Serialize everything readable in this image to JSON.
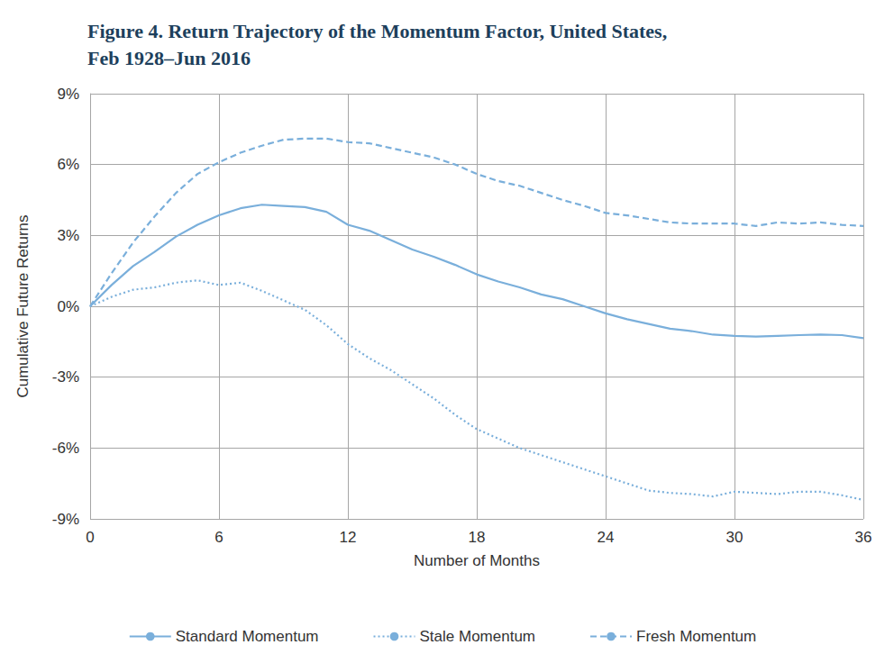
{
  "chart_data": {
    "type": "line",
    "title": "Figure 4. Return Trajectory of the Momentum Factor, United States,\nFeb 1928–Jun 2016",
    "x_label": "Number of Months",
    "y_label": "Cumulative Future Returns",
    "x": [
      0,
      1,
      2,
      3,
      4,
      5,
      6,
      7,
      8,
      9,
      10,
      11,
      12,
      13,
      14,
      15,
      16,
      17,
      18,
      19,
      20,
      21,
      22,
      23,
      24,
      25,
      26,
      27,
      28,
      29,
      30,
      31,
      32,
      33,
      34,
      35,
      36
    ],
    "xlim": [
      0,
      36
    ],
    "xticks": [
      0,
      6,
      12,
      18,
      24,
      30,
      36
    ],
    "ylim": [
      -9,
      9
    ],
    "yticks": [
      {
        "value": -9,
        "label": "-9%"
      },
      {
        "value": -6,
        "label": "-6%"
      },
      {
        "value": -3,
        "label": "-3%"
      },
      {
        "value": 0,
        "label": "0%"
      },
      {
        "value": 3,
        "label": "3%"
      },
      {
        "value": 6,
        "label": "6%"
      },
      {
        "value": 9,
        "label": "9%"
      }
    ],
    "grid": true,
    "legend": "bottom",
    "series": [
      {
        "name": "Standard Momentum",
        "color": "#7aafdb",
        "line_style": "solid",
        "values": [
          0,
          0.9,
          1.7,
          2.3,
          2.95,
          3.45,
          3.85,
          4.15,
          4.3,
          4.25,
          4.2,
          4.0,
          3.45,
          3.2,
          2.8,
          2.4,
          2.1,
          1.75,
          1.35,
          1.05,
          0.8,
          0.5,
          0.3,
          0.0,
          -0.3,
          -0.55,
          -0.75,
          -0.95,
          -1.05,
          -1.2,
          -1.25,
          -1.28,
          -1.25,
          -1.22,
          -1.2,
          -1.22,
          -1.35
        ]
      },
      {
        "name": "Stale Momentum",
        "color": "#7aafdb",
        "line_style": "dotted",
        "values": [
          0,
          0.4,
          0.7,
          0.8,
          1.0,
          1.1,
          0.9,
          1.0,
          0.65,
          0.25,
          -0.15,
          -0.8,
          -1.6,
          -2.2,
          -2.7,
          -3.3,
          -3.9,
          -4.6,
          -5.2,
          -5.6,
          -6.0,
          -6.3,
          -6.6,
          -6.9,
          -7.2,
          -7.5,
          -7.8,
          -7.9,
          -7.95,
          -8.05,
          -7.85,
          -7.9,
          -7.95,
          -7.85,
          -7.85,
          -8.0,
          -8.2
        ]
      },
      {
        "name": "Fresh Momentum",
        "color": "#7aafdb",
        "line_style": "dashed",
        "values": [
          0,
          1.4,
          2.7,
          3.8,
          4.8,
          5.6,
          6.1,
          6.5,
          6.8,
          7.05,
          7.1,
          7.1,
          6.95,
          6.9,
          6.7,
          6.5,
          6.3,
          6.0,
          5.6,
          5.3,
          5.1,
          4.8,
          4.5,
          4.25,
          3.95,
          3.85,
          3.7,
          3.55,
          3.5,
          3.5,
          3.5,
          3.4,
          3.55,
          3.5,
          3.55,
          3.45,
          3.4
        ]
      }
    ]
  }
}
